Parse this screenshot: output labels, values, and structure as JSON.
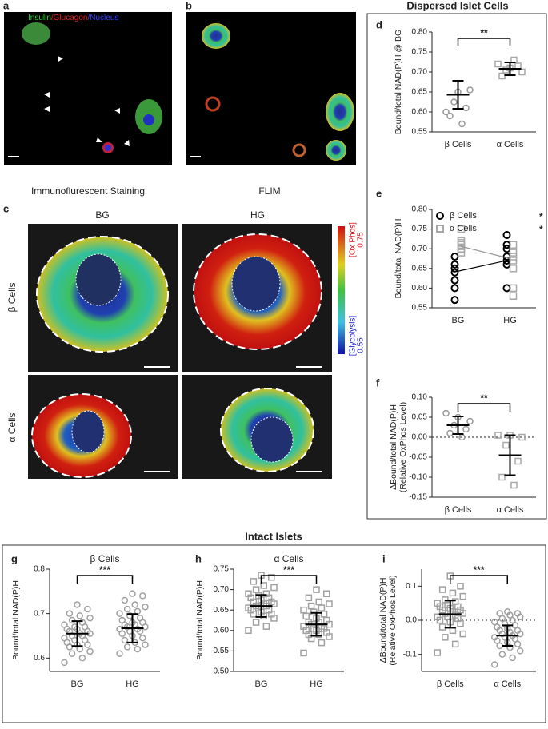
{
  "figure": {
    "panel_a": "a",
    "panel_b": "b",
    "panel_c": "c",
    "stain_labels": [
      "Insulin",
      "/Glucagon",
      "/Nucleus"
    ],
    "caption_a": "Immunoflurescent Staining",
    "caption_b": "FLIM",
    "col_labels": [
      "BG",
      "HG"
    ],
    "row_labels": [
      "β Cells",
      "α Cells"
    ],
    "colorbar": {
      "top_label": "[Ox Phos]",
      "max": 0.75,
      "bottom_label": "[Glycolysis]",
      "min": 0.55
    },
    "dispersed_title": "Dispersed Islet Cells",
    "intact_title": "Intact Islets"
  },
  "chart_data": [
    {
      "type": "dot",
      "panel": "d",
      "ylabel": [
        "Bound/total NAD(P)H @ BG"
      ],
      "categories": [
        "β Cells",
        "α Cells"
      ],
      "values": [
        [
          0.6,
          0.65,
          0.655,
          0.625,
          0.61,
          0.59,
          0.57
        ],
        [
          0.72,
          0.71,
          0.7,
          0.705,
          0.715,
          0.69,
          0.73
        ]
      ],
      "markers": [
        "circle",
        "square"
      ],
      "colors": [
        "#999999",
        "#a8a8a8"
      ],
      "means": [
        0.643,
        0.708
      ],
      "sds": [
        0.035,
        0.016
      ],
      "annotation": "**",
      "ylim": [
        0.55,
        0.8
      ],
      "yticks": [
        0.55,
        {
          "value": 0.6,
          "label": "0.60"
        },
        0.65,
        {
          "value": 0.7,
          "label": "0.70"
        },
        0.75,
        {
          "value": 0.8,
          "label": "0.80"
        }
      ]
    },
    {
      "type": "paired",
      "panel": "e",
      "ylabel": [
        "Bound/total NAD(P)H"
      ],
      "categories": [
        "BG",
        "HG"
      ],
      "legend": "upper left",
      "series": [
        {
          "name": "β Cells",
          "color": "#000000",
          "marker": "circle",
          "significance": "*",
          "values": [
            [
              0.57,
              0.6,
              0.62,
              0.64,
              0.65,
              0.66,
              0.68
            ],
            [
              0.6,
              0.66,
              0.67,
              0.68,
              0.7,
              0.71,
              0.735
            ]
          ],
          "means": [
            0.643,
            0.672
          ]
        },
        {
          "name": "α Cells",
          "color": "#a8a8a8",
          "marker": "square",
          "significance": "*",
          "values": [
            [
              0.69,
              0.7,
              0.7,
              0.71,
              0.715,
              0.72,
              0.75
            ],
            [
              0.58,
              0.6,
              0.65,
              0.67,
              0.68,
              0.69,
              0.71
            ]
          ],
          "means": [
            0.708,
            0.675
          ]
        }
      ],
      "ylim": [
        0.55,
        0.8
      ],
      "yticks": [
        0.55,
        {
          "value": 0.6,
          "label": "0.60"
        },
        0.65,
        {
          "value": 0.7,
          "label": "0.70"
        },
        0.75,
        {
          "value": 0.8,
          "label": "0.80"
        }
      ]
    },
    {
      "type": "dot",
      "panel": "f",
      "ylabel": [
        "ΔBound/total NAD(P)H",
        "(Relative OxPhos Level)"
      ],
      "categories": [
        "β Cells",
        "α Cells"
      ],
      "values": [
        [
          0.06,
          0.05,
          0.04,
          0.03,
          0.02,
          0.01,
          0.0
        ],
        [
          0.005,
          0.005,
          0.0,
          -0.02,
          -0.06,
          -0.1,
          -0.12
        ]
      ],
      "markers": [
        "circle",
        "square"
      ],
      "colors": [
        "#999999",
        "#a8a8a8"
      ],
      "means": [
        0.03,
        -0.045
      ],
      "sds": [
        0.022,
        0.05
      ],
      "annotation": "**",
      "reference_line": 0,
      "ylim": [
        -0.15,
        0.1
      ],
      "yticks": [
        -0.15,
        {
          "value": -0.1,
          "label": "-0.10"
        },
        -0.05,
        {
          "value": 0,
          "label": "0.00"
        },
        0.05,
        {
          "value": 0.1,
          "label": "0.10"
        }
      ]
    },
    {
      "type": "dot",
      "panel": "g",
      "title": "β Cells",
      "ylabel": [
        "Bound/total NAD(P)H"
      ],
      "categories": [
        "BG",
        "HG"
      ],
      "values": [
        [
          0.59,
          0.6,
          0.61,
          0.615,
          0.62,
          0.625,
          0.63,
          0.63,
          0.635,
          0.64,
          0.64,
          0.645,
          0.65,
          0.65,
          0.655,
          0.655,
          0.66,
          0.66,
          0.665,
          0.665,
          0.67,
          0.67,
          0.675,
          0.68,
          0.685,
          0.69,
          0.695,
          0.7,
          0.71,
          0.72
        ],
        [
          0.61,
          0.62,
          0.625,
          0.63,
          0.635,
          0.64,
          0.645,
          0.65,
          0.655,
          0.66,
          0.66,
          0.665,
          0.665,
          0.67,
          0.67,
          0.675,
          0.675,
          0.68,
          0.68,
          0.685,
          0.69,
          0.695,
          0.7,
          0.705,
          0.71,
          0.715,
          0.72,
          0.73,
          0.74,
          0.745
        ]
      ],
      "markers": [
        "circle",
        "circle"
      ],
      "colors": [
        "#a0a0a0",
        "#a0a0a0"
      ],
      "means": [
        0.655,
        0.667
      ],
      "sds": [
        0.028,
        0.032
      ],
      "annotation": "***",
      "ylim": [
        0.57,
        0.8
      ],
      "yticks": [
        0.6,
        0.7,
        0.8
      ]
    },
    {
      "type": "dot",
      "panel": "h",
      "title": "α Cells",
      "ylabel": [
        "Bound/total NAD(P)H"
      ],
      "categories": [
        "BG",
        "HG"
      ],
      "values": [
        [
          0.6,
          0.61,
          0.62,
          0.63,
          0.635,
          0.64,
          0.64,
          0.645,
          0.65,
          0.65,
          0.655,
          0.655,
          0.66,
          0.66,
          0.665,
          0.665,
          0.67,
          0.67,
          0.675,
          0.68,
          0.68,
          0.685,
          0.69,
          0.69,
          0.7,
          0.705,
          0.71,
          0.72,
          0.73,
          0.735
        ],
        [
          0.545,
          0.57,
          0.58,
          0.585,
          0.59,
          0.59,
          0.595,
          0.6,
          0.6,
          0.605,
          0.605,
          0.61,
          0.61,
          0.615,
          0.615,
          0.62,
          0.62,
          0.625,
          0.63,
          0.635,
          0.64,
          0.645,
          0.65,
          0.655,
          0.66,
          0.665,
          0.67,
          0.68,
          0.69,
          0.7
        ]
      ],
      "markers": [
        "square",
        "square"
      ],
      "colors": [
        "#a0a0a0",
        "#a0a0a0"
      ],
      "means": [
        0.66,
        0.615
      ],
      "sds": [
        0.027,
        0.028
      ],
      "annotation": "***",
      "ylim": [
        0.5,
        0.75
      ],
      "yticks": [
        {
          "value": 0.5,
          "label": "0.50"
        },
        0.55,
        {
          "value": 0.6,
          "label": "0.60"
        },
        0.65,
        {
          "value": 0.7,
          "label": "0.70"
        },
        0.75
      ]
    },
    {
      "type": "dot",
      "panel": "i",
      "ylabel": [
        "ΔBound/total NAD(P)H",
        "(Relative OxPhos Level)"
      ],
      "categories": [
        "β Cells",
        "α Cells"
      ],
      "values": [
        [
          -0.095,
          -0.07,
          -0.05,
          -0.04,
          -0.03,
          -0.02,
          -0.01,
          -0.005,
          0,
          0.005,
          0.01,
          0.01,
          0.015,
          0.02,
          0.02,
          0.025,
          0.03,
          0.03,
          0.035,
          0.04,
          0.04,
          0.045,
          0.05,
          0.055,
          0.06,
          0.07,
          0.08,
          0.09,
          0.1,
          0.13
        ],
        [
          -0.13,
          -0.11,
          -0.1,
          -0.09,
          -0.08,
          -0.075,
          -0.07,
          -0.065,
          -0.06,
          -0.055,
          -0.05,
          -0.05,
          -0.045,
          -0.04,
          -0.04,
          -0.035,
          -0.03,
          -0.03,
          -0.025,
          -0.02,
          -0.015,
          -0.01,
          -0.005,
          0,
          0.005,
          0.01,
          0.015,
          0.02,
          0.02,
          0.025
        ]
      ],
      "markers": [
        "square",
        "circle"
      ],
      "colors": [
        "#a0a0a0",
        "#a0a0a0"
      ],
      "means": [
        0.018,
        -0.045
      ],
      "sds": [
        0.04,
        0.03
      ],
      "annotation": "***",
      "reference_line": 0,
      "ylim": [
        -0.15,
        0.15
      ],
      "yticks": [
        -0.1,
        {
          "value": 0,
          "label": "0.0"
        },
        0.1
      ]
    }
  ]
}
